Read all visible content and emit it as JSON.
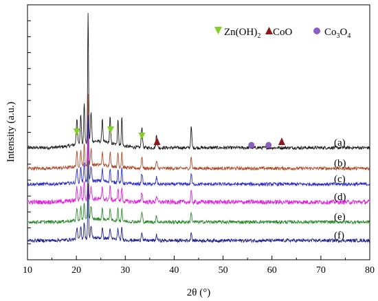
{
  "chart_data": {
    "type": "line",
    "xlabel": "2θ (°)",
    "ylabel": "Intensity (a.u.)",
    "xlim": [
      10,
      80
    ],
    "x_ticks": [
      10,
      20,
      30,
      40,
      50,
      60,
      70,
      80
    ],
    "y_ticks_labeled": false,
    "grid": false,
    "legend_position": "top-right",
    "legend": [
      {
        "marker": "down-triangle",
        "color": "#7ed321",
        "label": "Zn(OH)",
        "sub": "2"
      },
      {
        "marker": "up-triangle",
        "color": "#8b1a1a",
        "label": "CoO",
        "sub": ""
      },
      {
        "marker": "circle",
        "color": "#8c5fc4",
        "label": "Co",
        "sub": "3",
        "label2": "O",
        "sub2": "4"
      }
    ],
    "series": [
      {
        "name": "(a)",
        "color": "#1a1a1a",
        "baseline": 1.0
      },
      {
        "name": "(b)",
        "color": "#b04a2c",
        "baseline": 0.82
      },
      {
        "name": "(c)",
        "color": "#2b2bcc",
        "baseline": 0.64
      },
      {
        "name": "(d)",
        "color": "#e020e0",
        "baseline": 0.46
      },
      {
        "name": "(e)",
        "color": "#2a8a2a",
        "baseline": 0.28
      },
      {
        "name": "(f)",
        "color": "#1e1e8c",
        "baseline": 0.1
      }
    ],
    "peaks_2theta": [
      20.1,
      20.9,
      21.6,
      22.4,
      25.3,
      26.9,
      28.5,
      29.3,
      33.4,
      36.4,
      43.5
    ],
    "markers": [
      {
        "type": "down-triangle",
        "color": "#7ed321",
        "x": 20.1,
        "series": "(a)"
      },
      {
        "type": "down-triangle",
        "color": "#7ed321",
        "x": 27.0,
        "series": "(a)"
      },
      {
        "type": "down-triangle",
        "color": "#7ed321",
        "x": 33.4,
        "series": "(a)"
      },
      {
        "type": "up-triangle",
        "color": "#8b1a1a",
        "x": 36.5,
        "series": "(a)"
      },
      {
        "type": "circle",
        "color": "#8c5fc4",
        "x": 55.8,
        "series": "(a)"
      },
      {
        "type": "circle",
        "color": "#8c5fc4",
        "x": 59.3,
        "series": "(a)"
      },
      {
        "type": "up-triangle",
        "color": "#8b1a1a",
        "x": 62.0,
        "series": "(a)"
      }
    ]
  }
}
